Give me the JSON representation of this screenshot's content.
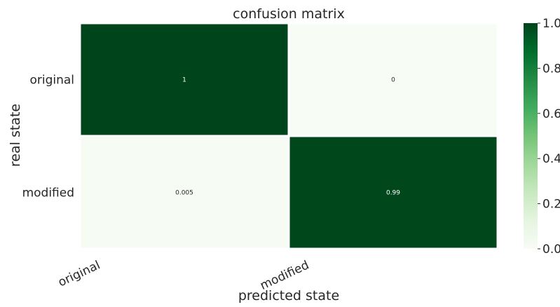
{
  "chart_data": {
    "type": "heatmap",
    "title": "confusion matrix",
    "xlabel": "predicted state",
    "ylabel": "real state",
    "x_categories": [
      "original",
      "modified"
    ],
    "y_categories": [
      "original",
      "modified"
    ],
    "values": [
      [
        1,
        0
      ],
      [
        0.005,
        0.99
      ]
    ],
    "cell_labels": [
      [
        "1",
        "0"
      ],
      [
        "0.005",
        "0.99"
      ]
    ],
    "colormap": "Greens",
    "colors": {
      "low": "#f7fcf5",
      "high": "#00441b",
      "gridline": "#ffffff",
      "text_dark": "#262626",
      "text_light": "#ffffff"
    },
    "colorbar": {
      "range": [
        0,
        1
      ],
      "ticks": [
        "0.0",
        "0.2",
        "0.4",
        "0.6",
        "0.8",
        "1.0"
      ]
    }
  }
}
